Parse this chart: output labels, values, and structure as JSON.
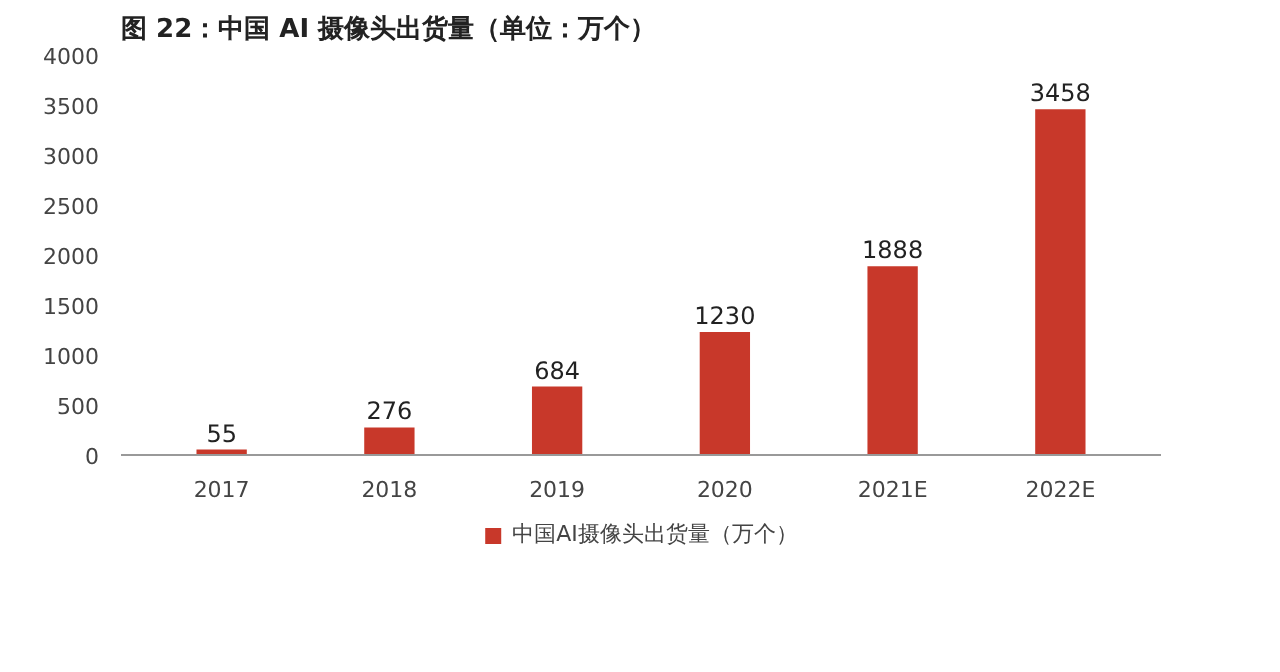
{
  "chart_data": {
    "type": "bar",
    "title": "图 22：中国 AI 摄像头出货量（单位：万个）",
    "categories": [
      "2017",
      "2018",
      "2019",
      "2020",
      "2021E",
      "2022E"
    ],
    "series": [
      {
        "name": "中国AI摄像头出货量（万个）",
        "color": "#c8382a",
        "values": [
          55,
          276,
          684,
          1230,
          1888,
          3458
        ]
      }
    ],
    "ylim": [
      0,
      4000
    ],
    "yticks": [
      0,
      500,
      1000,
      1500,
      2000,
      2500,
      3000,
      3500,
      4000
    ],
    "data_labels": true,
    "grid": false,
    "legend": "bottom"
  }
}
